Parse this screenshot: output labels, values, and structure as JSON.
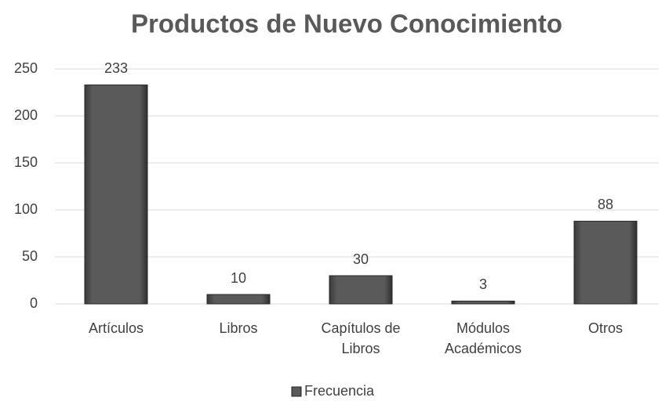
{
  "chart_data": {
    "type": "bar",
    "title": "Productos de Nuevo Conocimiento",
    "categories": [
      "Artículos",
      "Libros",
      "Capítulos de Libros",
      "Módulos Académicos",
      "Otros"
    ],
    "series": [
      {
        "name": "Frecuencia",
        "color": "#505050",
        "values": [
          233,
          10,
          30,
          3,
          88
        ]
      }
    ],
    "ylim": [
      0,
      250
    ],
    "yticks": [
      0,
      50,
      100,
      150,
      200,
      250
    ],
    "grid": true,
    "legend": "bottom"
  }
}
